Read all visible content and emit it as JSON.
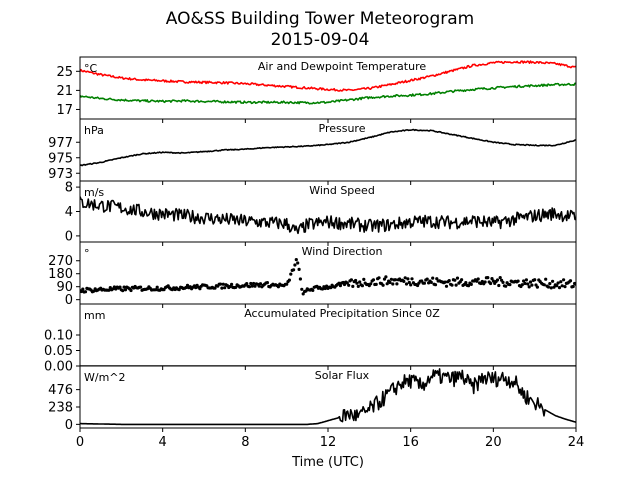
{
  "figure": {
    "title_line1": "AO&SS Building Tower Meteorogram",
    "title_line2": "2015-09-04",
    "xlabel": "Time (UTC)"
  },
  "colors": {
    "temperature": "#ff0000",
    "dewpoint": "#008000",
    "series": "#000000"
  },
  "chart_data": [
    {
      "type": "line",
      "title": "Air and Dewpoint Temperature",
      "unit": "°C",
      "xlim": [
        0,
        24
      ],
      "ylim": [
        15,
        28
      ],
      "yticks": [
        17,
        21,
        25
      ],
      "xticks": [
        0,
        4,
        8,
        12,
        16,
        20,
        24
      ],
      "series": [
        {
          "name": "Air Temperature",
          "x": [
            0,
            1,
            2,
            3,
            4,
            5,
            6,
            7,
            8,
            9,
            10,
            11,
            12,
            13,
            14,
            15,
            16,
            17,
            18,
            19,
            20,
            21,
            22,
            23,
            24
          ],
          "values": [
            25.2,
            24.3,
            23.6,
            23.2,
            23.0,
            22.8,
            22.7,
            22.6,
            22.4,
            22.1,
            21.8,
            21.5,
            21.2,
            21.0,
            21.4,
            22.2,
            23.1,
            24.0,
            25.1,
            26.2,
            26.8,
            27.0,
            26.9,
            26.6,
            25.8
          ]
        },
        {
          "name": "Dewpoint Temperature",
          "x": [
            0,
            1,
            2,
            3,
            4,
            5,
            6,
            7,
            8,
            9,
            10,
            11,
            12,
            13,
            14,
            15,
            16,
            17,
            18,
            19,
            20,
            21,
            22,
            23,
            24
          ],
          "values": [
            19.8,
            19.3,
            19.0,
            18.8,
            18.7,
            18.8,
            18.7,
            18.6,
            18.5,
            18.5,
            18.5,
            18.4,
            18.5,
            19.0,
            19.5,
            19.8,
            20.0,
            20.3,
            20.8,
            21.2,
            21.5,
            21.8,
            22.0,
            22.2,
            22.3
          ]
        }
      ]
    },
    {
      "type": "line",
      "title": "Pressure",
      "unit": "hPa",
      "xlim": [
        0,
        24
      ],
      "ylim": [
        972,
        980
      ],
      "yticks": [
        973,
        975,
        977
      ],
      "series": [
        {
          "x": [
            0,
            1,
            2,
            3,
            4,
            5,
            6,
            7,
            8,
            9,
            10,
            11,
            12,
            13,
            14,
            15,
            16,
            17,
            18,
            19,
            20,
            21,
            22,
            23,
            24
          ],
          "values": [
            974.0,
            974.4,
            975.0,
            975.5,
            975.7,
            975.6,
            975.8,
            976.0,
            976.1,
            976.3,
            976.4,
            976.5,
            976.7,
            977.0,
            977.6,
            978.3,
            978.6,
            978.5,
            978.0,
            977.5,
            977.0,
            976.7,
            976.6,
            976.6,
            977.3
          ]
        }
      ]
    },
    {
      "type": "line",
      "title": "Wind Speed",
      "unit": "m/s",
      "xlim": [
        0,
        24
      ],
      "ylim": [
        -1,
        9
      ],
      "yticks": [
        0,
        4,
        8
      ],
      "series": [
        {
          "x": [
            0,
            1,
            2,
            3,
            4,
            5,
            6,
            7,
            8,
            9,
            10,
            10.5,
            11,
            12,
            13,
            14,
            15,
            16,
            17,
            18,
            19,
            20,
            21,
            22,
            23,
            24
          ],
          "values": [
            5.5,
            5.0,
            4.6,
            4.0,
            3.6,
            3.3,
            3.0,
            2.7,
            2.4,
            2.2,
            2.0,
            0.6,
            1.8,
            2.3,
            2.0,
            1.6,
            1.8,
            2.3,
            2.4,
            2.2,
            2.5,
            2.1,
            2.7,
            3.3,
            3.7,
            3.0
          ]
        }
      ]
    },
    {
      "type": "scatter",
      "title": "Wind Direction",
      "unit": "°",
      "xlim": [
        0,
        24
      ],
      "ylim": [
        -30,
        400
      ],
      "yticks": [
        0,
        90,
        180,
        270
      ],
      "series": [
        {
          "x": [
            0,
            1,
            2,
            3,
            4,
            5,
            6,
            7,
            8,
            9,
            10,
            10.5,
            10.8,
            11,
            12,
            13,
            14,
            15,
            16,
            17,
            18,
            19,
            20,
            21,
            22,
            23,
            24
          ],
          "values": [
            65,
            70,
            75,
            78,
            80,
            85,
            90,
            95,
            100,
            105,
            95,
            280,
            30,
            70,
            90,
            110,
            125,
            130,
            130,
            125,
            120,
            125,
            125,
            120,
            115,
            110,
            105
          ]
        }
      ]
    },
    {
      "type": "line",
      "title": "Accumulated Precipitation Since 0Z",
      "unit": "mm",
      "xlim": [
        0,
        24
      ],
      "ylim": [
        0,
        0.2
      ],
      "yticks": [
        0.0,
        0.05,
        0.1
      ],
      "ytick_labels": [
        "0.00",
        "0.05",
        "0.10"
      ],
      "series": [
        {
          "x": [
            0,
            24
          ],
          "values": [
            0,
            0
          ]
        }
      ]
    },
    {
      "type": "line",
      "title": "Solar Flux",
      "unit": "W/m^2",
      "xlim": [
        0,
        24
      ],
      "ylim": [
        -50,
        800
      ],
      "yticks": [
        0,
        238,
        476
      ],
      "xticks": [
        0,
        4,
        8,
        12,
        16,
        20,
        24
      ],
      "series": [
        {
          "x": [
            0,
            1,
            2,
            3,
            4,
            5,
            6,
            7,
            8,
            9,
            10,
            11,
            11.5,
            12,
            12.5,
            13,
            13.5,
            14,
            14.5,
            15,
            15.5,
            16,
            16.5,
            17,
            17.5,
            18,
            18.5,
            19,
            19.5,
            20,
            20.5,
            21,
            21.5,
            22,
            22.5,
            23,
            23.5,
            24
          ],
          "values": [
            10,
            5,
            0,
            0,
            0,
            0,
            0,
            0,
            0,
            0,
            0,
            0,
            10,
            50,
            90,
            140,
            110,
            200,
            310,
            430,
            560,
            600,
            520,
            660,
            650,
            620,
            660,
            500,
            640,
            620,
            640,
            590,
            400,
            300,
            200,
            120,
            70,
            30
          ]
        }
      ]
    }
  ]
}
